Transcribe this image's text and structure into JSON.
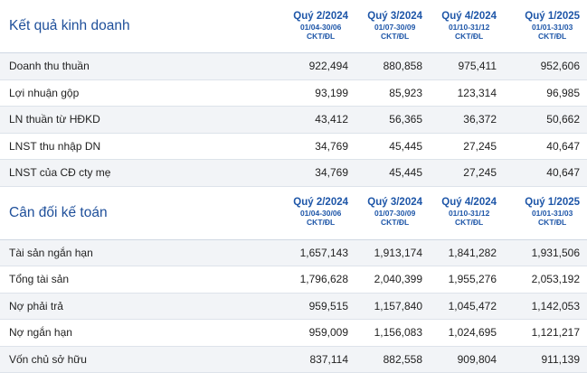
{
  "quarters": [
    {
      "name": "Quý 2/2024",
      "dates": "01/04-30/06",
      "unit": "CKT/ĐL"
    },
    {
      "name": "Quý 3/2024",
      "dates": "01/07-30/09",
      "unit": "CKT/ĐL"
    },
    {
      "name": "Quý 4/2024",
      "dates": "01/10-31/12",
      "unit": "CKT/ĐL"
    },
    {
      "name": "Quý 1/2025",
      "dates": "01/01-31/03",
      "unit": "CKT/ĐL"
    }
  ],
  "income": {
    "title": "Kết quả kinh doanh",
    "rows": [
      {
        "label": "Doanh thu thuần",
        "values": [
          "922,494",
          "880,858",
          "975,411",
          "952,606"
        ]
      },
      {
        "label": "Lợi nhuận gộp",
        "values": [
          "93,199",
          "85,923",
          "123,314",
          "96,985"
        ]
      },
      {
        "label": "LN thuần từ HĐKD",
        "values": [
          "43,412",
          "56,365",
          "36,372",
          "50,662"
        ]
      },
      {
        "label": "LNST thu nhập DN",
        "values": [
          "34,769",
          "45,445",
          "27,245",
          "40,647"
        ]
      },
      {
        "label": "LNST của CĐ cty mẹ",
        "values": [
          "34,769",
          "45,445",
          "27,245",
          "40,647"
        ]
      }
    ]
  },
  "balance": {
    "title": "Cân đối kế toán",
    "rows": [
      {
        "label": "Tài sản ngắn hạn",
        "values": [
          "1,657,143",
          "1,913,174",
          "1,841,282",
          "1,931,506"
        ]
      },
      {
        "label": "Tổng tài sản",
        "values": [
          "1,796,628",
          "2,040,399",
          "1,955,276",
          "2,053,192"
        ]
      },
      {
        "label": "Nợ phải trả",
        "values": [
          "959,515",
          "1,157,840",
          "1,045,472",
          "1,142,053"
        ]
      },
      {
        "label": "Nợ ngắn hạn",
        "values": [
          "959,009",
          "1,156,083",
          "1,024,695",
          "1,121,217"
        ]
      },
      {
        "label": "Vốn chủ sở hữu",
        "values": [
          "837,114",
          "882,558",
          "909,804",
          "911,139"
        ]
      }
    ]
  }
}
